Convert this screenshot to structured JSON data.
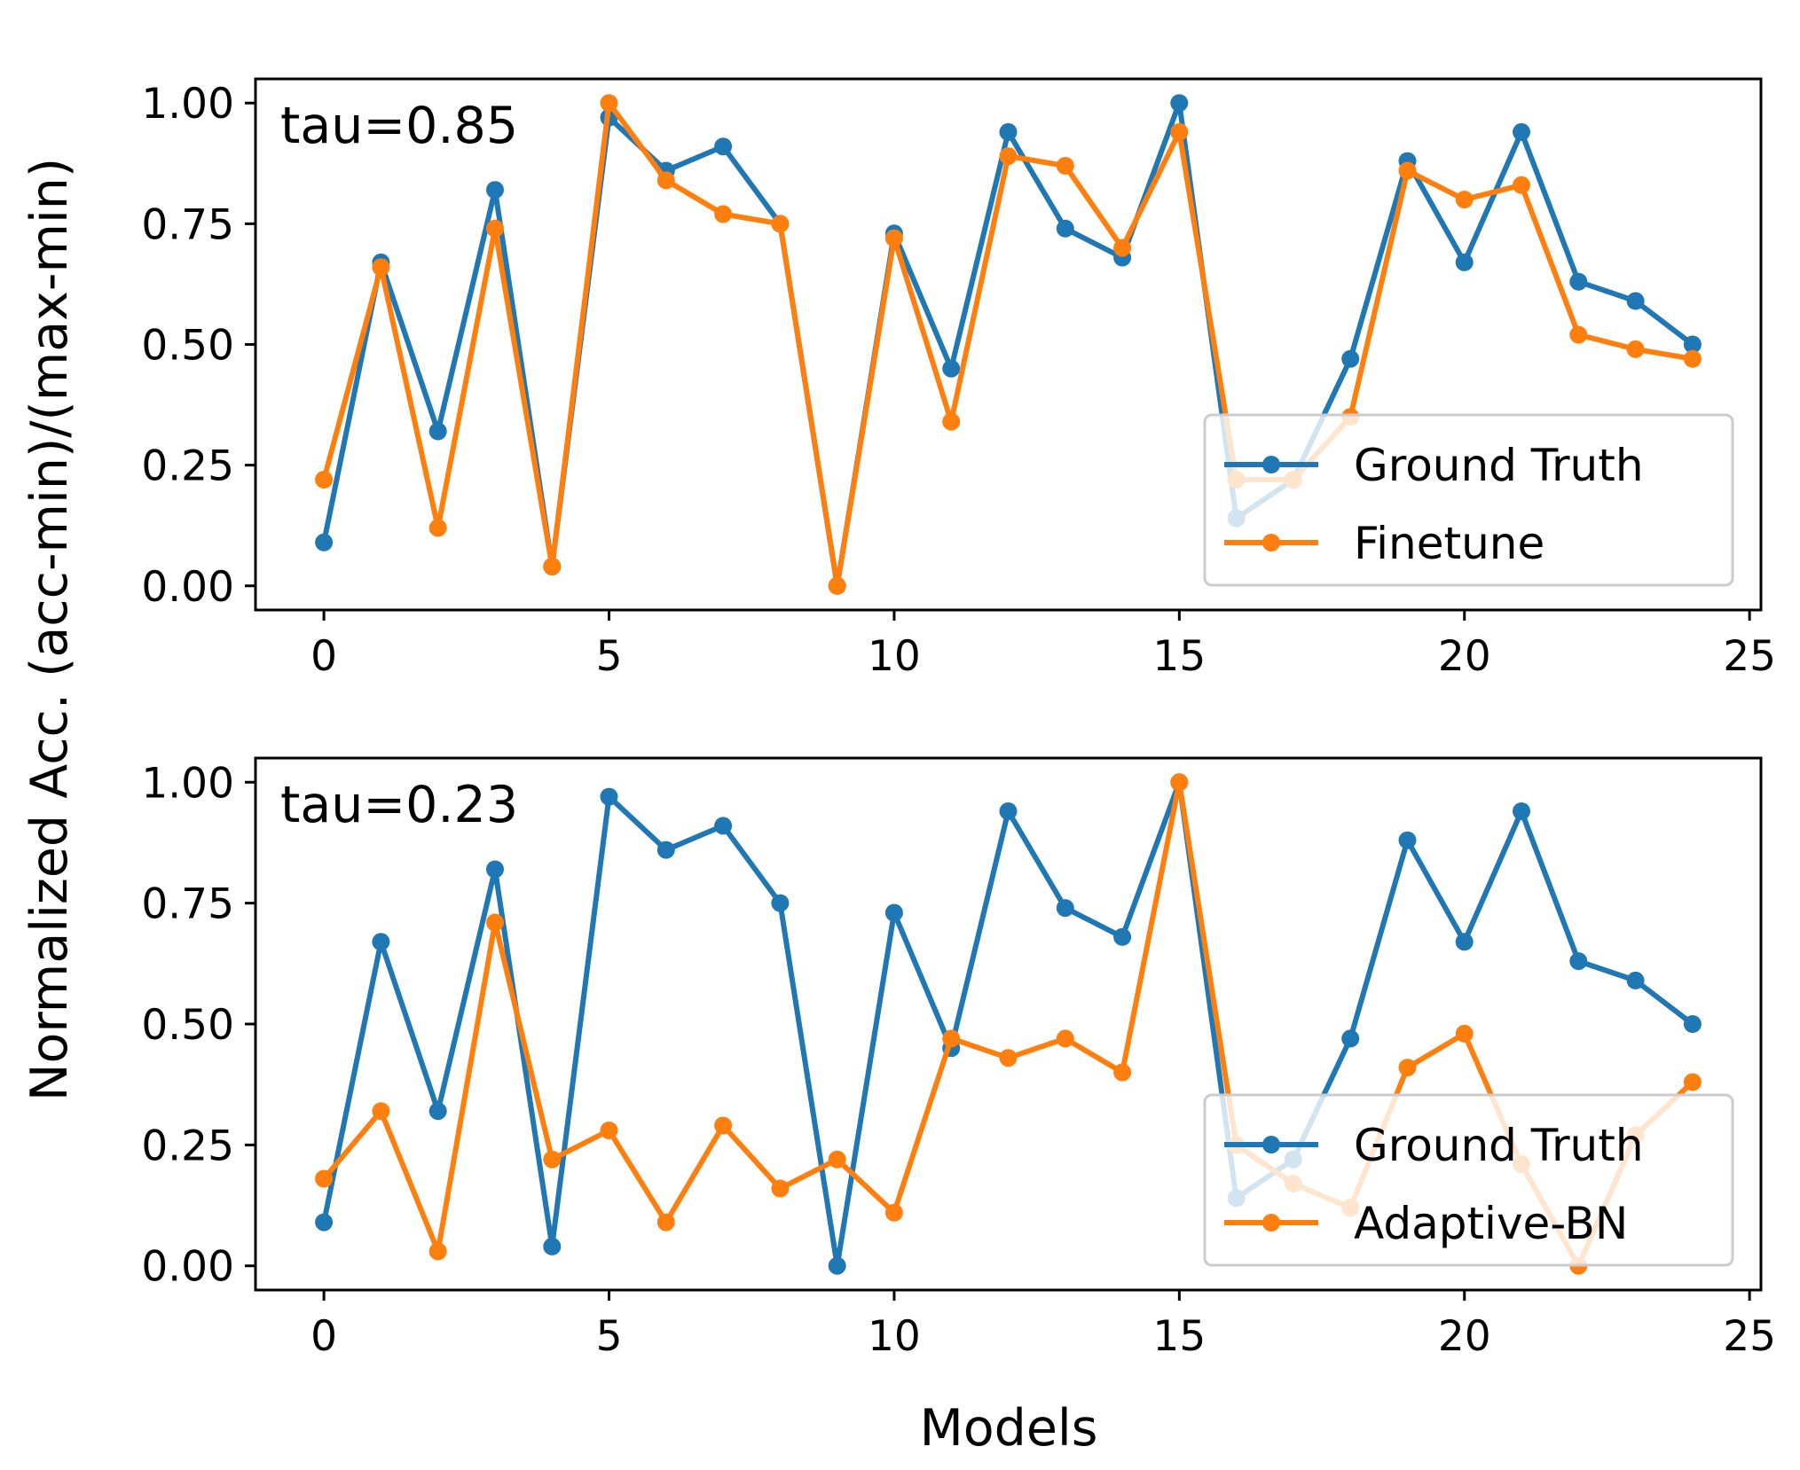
{
  "figure": {
    "ylabel": "Normalized Acc. (acc-min)/(max-min)",
    "xlabel": "Models"
  },
  "chart_data": [
    {
      "type": "line",
      "annotation": "tau=0.85",
      "x": [
        0,
        1,
        2,
        3,
        4,
        5,
        6,
        7,
        8,
        9,
        10,
        11,
        12,
        13,
        14,
        15,
        16,
        17,
        18,
        19,
        20,
        21,
        22,
        23,
        24
      ],
      "xlim": [
        -1.2,
        25.2
      ],
      "ylim": [
        -0.05,
        1.05
      ],
      "xticks": [
        "0",
        "5",
        "10",
        "15",
        "20",
        "25"
      ],
      "xtick_values": [
        0,
        5,
        10,
        15,
        20,
        25
      ],
      "yticks": [
        "0.00",
        "0.25",
        "0.50",
        "0.75",
        "1.00"
      ],
      "ytick_values": [
        0,
        0.25,
        0.5,
        0.75,
        1.0
      ],
      "legend_position": "lower-right",
      "series": [
        {
          "name": "Ground Truth",
          "color": "#1f77b4",
          "values": [
            0.09,
            0.67,
            0.32,
            0.82,
            0.04,
            0.97,
            0.86,
            0.91,
            0.75,
            0.0,
            0.73,
            0.45,
            0.94,
            0.74,
            0.68,
            1.0,
            0.14,
            0.22,
            0.47,
            0.88,
            0.67,
            0.94,
            0.63,
            0.59,
            0.5
          ]
        },
        {
          "name": "Finetune",
          "color": "#ff7f0e",
          "values": [
            0.22,
            0.66,
            0.12,
            0.74,
            0.04,
            1.0,
            0.84,
            0.77,
            0.75,
            0.0,
            0.72,
            0.34,
            0.89,
            0.87,
            0.7,
            0.94,
            0.22,
            0.22,
            0.35,
            0.86,
            0.8,
            0.83,
            0.52,
            0.49,
            0.47
          ]
        }
      ]
    },
    {
      "type": "line",
      "annotation": "tau=0.23",
      "x": [
        0,
        1,
        2,
        3,
        4,
        5,
        6,
        7,
        8,
        9,
        10,
        11,
        12,
        13,
        14,
        15,
        16,
        17,
        18,
        19,
        20,
        21,
        22,
        23,
        24
      ],
      "xlim": [
        -1.2,
        25.2
      ],
      "ylim": [
        -0.05,
        1.05
      ],
      "xticks": [
        "0",
        "5",
        "10",
        "15",
        "20",
        "25"
      ],
      "xtick_values": [
        0,
        5,
        10,
        15,
        20,
        25
      ],
      "yticks": [
        "0.00",
        "0.25",
        "0.50",
        "0.75",
        "1.00"
      ],
      "ytick_values": [
        0,
        0.25,
        0.5,
        0.75,
        1.0
      ],
      "legend_position": "lower-right",
      "series": [
        {
          "name": "Ground Truth",
          "color": "#1f77b4",
          "values": [
            0.09,
            0.67,
            0.32,
            0.82,
            0.04,
            0.97,
            0.86,
            0.91,
            0.75,
            0.0,
            0.73,
            0.45,
            0.94,
            0.74,
            0.68,
            1.0,
            0.14,
            0.22,
            0.47,
            0.88,
            0.67,
            0.94,
            0.63,
            0.59,
            0.5
          ]
        },
        {
          "name": "Adaptive-BN",
          "color": "#ff7f0e",
          "values": [
            0.18,
            0.32,
            0.03,
            0.71,
            0.22,
            0.28,
            0.09,
            0.29,
            0.16,
            0.22,
            0.11,
            0.47,
            0.43,
            0.47,
            0.4,
            1.0,
            0.25,
            0.17,
            0.12,
            0.41,
            0.48,
            0.21,
            0.0,
            0.27,
            0.38
          ]
        }
      ]
    }
  ]
}
